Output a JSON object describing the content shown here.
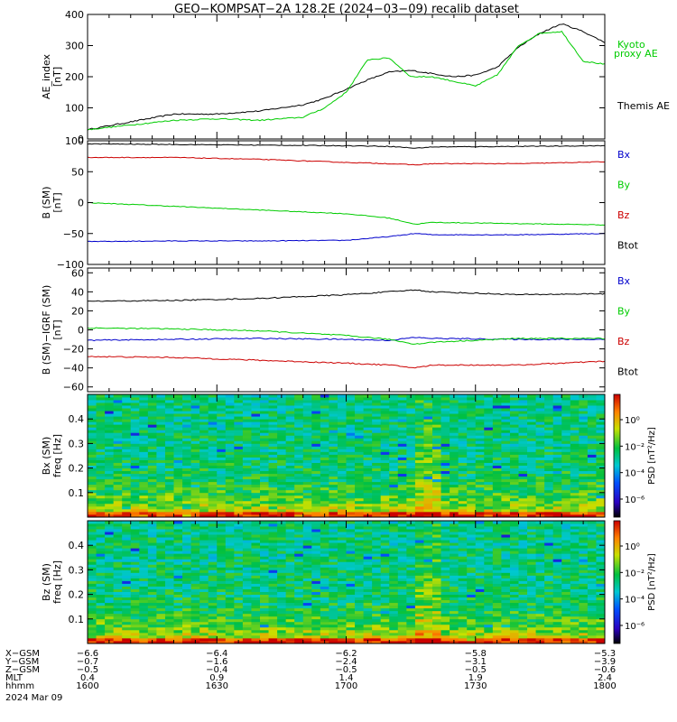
{
  "title": "GEO−KOMPSAT−2A 128.2E (2024−03−09) recalib dataset",
  "colors": {
    "black": "#000000",
    "red": "#cc0000",
    "green": "#00cc00",
    "blue": "#0000cc"
  },
  "orbit": {
    "rows": [
      {
        "label": "X−GSM",
        "values": [
          "−6.6",
          "−6.4",
          "−6.2",
          "−5.8",
          "−5.3"
        ]
      },
      {
        "label": "Y−GSM",
        "values": [
          "−0.7",
          "−1.6",
          "−2.4",
          "−3.1",
          "−3.9"
        ]
      },
      {
        "label": "Z−GSM",
        "values": [
          "−0.5",
          "−0.4",
          "−0.5",
          "−0.5",
          "−0.6"
        ]
      },
      {
        "label": "MLT",
        "values": [
          "0.4",
          "0.9",
          "1.4",
          "1.9",
          "2.4"
        ]
      },
      {
        "label": "hhmm",
        "values": [
          "1600",
          "1630",
          "1700",
          "1730",
          "1800"
        ]
      }
    ],
    "date": "2024 Mar 09"
  },
  "chart_data": [
    {
      "type": "line",
      "ylabel": [
        "AE_index",
        "[nT]"
      ],
      "ylim": [
        0,
        400
      ],
      "yticks": [
        "0",
        "100",
        "200",
        "300",
        "400"
      ],
      "x": [
        1600,
        1610,
        1620,
        1630,
        1640,
        1650,
        1655,
        1700,
        1705,
        1710,
        1715,
        1720,
        1725,
        1730,
        1735,
        1740,
        1745,
        1750,
        1755,
        1800
      ],
      "series": [
        {
          "name": "Themis AE",
          "color": "black",
          "values": [
            30,
            55,
            80,
            80,
            90,
            110,
            130,
            160,
            190,
            215,
            220,
            210,
            200,
            205,
            230,
            295,
            340,
            370,
            345,
            310
          ]
        },
        {
          "name": "Kyoto proxy AE",
          "color": "green",
          "values": [
            30,
            45,
            60,
            65,
            60,
            70,
            100,
            150,
            255,
            260,
            200,
            200,
            185,
            170,
            205,
            300,
            340,
            345,
            250,
            240
          ]
        }
      ],
      "legend": [
        {
          "text": "Kyoto",
          "color": "green"
        },
        {
          "text": "proxy AE",
          "color": "green"
        },
        {
          "text": "Themis AE",
          "color": "black"
        }
      ]
    },
    {
      "type": "line",
      "ylabel": [
        "B (SM)",
        "[nT]"
      ],
      "ylim": [
        -100,
        100
      ],
      "yticks": [
        "−100",
        "−50",
        "0",
        "50",
        "100"
      ],
      "x": [
        1600,
        1620,
        1640,
        1700,
        1710,
        1716,
        1720,
        1740,
        1800
      ],
      "series": [
        {
          "name": "Bx",
          "color": "blue",
          "values": [
            -63,
            -62,
            -62,
            -61,
            -55,
            -50,
            -52,
            -52,
            -50
          ]
        },
        {
          "name": "By",
          "color": "green",
          "values": [
            0,
            -6,
            -12,
            -18,
            -25,
            -35,
            -32,
            -34,
            -36
          ]
        },
        {
          "name": "Bz",
          "color": "red",
          "values": [
            73,
            73,
            70,
            65,
            63,
            61,
            63,
            63,
            66
          ]
        },
        {
          "name": "Btot",
          "color": "black",
          "values": [
            95,
            94,
            93,
            92,
            91,
            88,
            90,
            91,
            92
          ]
        }
      ],
      "legend": [
        {
          "text": "Bx",
          "color": "blue"
        },
        {
          "text": "By",
          "color": "green"
        },
        {
          "text": "Bz",
          "color": "red"
        },
        {
          "text": "Btot",
          "color": "black"
        }
      ]
    },
    {
      "type": "line",
      "ylabel": [
        "B (SM)−IGRF (SM)",
        "[nT]"
      ],
      "ylim": [
        -65,
        65
      ],
      "yticks": [
        "−60",
        "−40",
        "−20",
        "0",
        "20",
        "40",
        "60"
      ],
      "x": [
        1600,
        1620,
        1640,
        1700,
        1710,
        1716,
        1720,
        1740,
        1800
      ],
      "series": [
        {
          "name": "Bx",
          "color": "blue",
          "values": [
            -11,
            -10,
            -9,
            -10,
            -11,
            -8,
            -9,
            -10,
            -10
          ]
        },
        {
          "name": "By",
          "color": "green",
          "values": [
            2,
            1,
            -1,
            -6,
            -10,
            -15,
            -13,
            -9,
            -9
          ]
        },
        {
          "name": "Bz",
          "color": "red",
          "values": [
            -28,
            -29,
            -32,
            -35,
            -37,
            -40,
            -37,
            -37,
            -33
          ]
        },
        {
          "name": "Btot",
          "color": "black",
          "values": [
            30,
            31,
            33,
            37,
            40,
            42,
            40,
            37,
            38
          ]
        }
      ],
      "legend": [
        {
          "text": "Bx",
          "color": "blue"
        },
        {
          "text": "By",
          "color": "green"
        },
        {
          "text": "Bz",
          "color": "red"
        },
        {
          "text": "Btot",
          "color": "black"
        }
      ]
    },
    {
      "type": "heatmap",
      "ylabel": [
        "Bx (SM)",
        "freq [Hz]"
      ],
      "ylim": [
        0,
        0.5
      ],
      "yticks": [
        "0.1",
        "0.2",
        "0.3",
        "0.4"
      ],
      "colorbar": {
        "label": "PSD [nT²/Hz]",
        "ticks": [
          "10⁰",
          "10⁻²",
          "10⁻⁴",
          "10⁻⁶"
        ]
      }
    },
    {
      "type": "heatmap",
      "ylabel": [
        "Bz (SM)",
        "freq [Hz]"
      ],
      "ylim": [
        0,
        0.5
      ],
      "yticks": [
        "0.1",
        "0.2",
        "0.3",
        "0.4"
      ],
      "colorbar": {
        "label": "PSD [nT²/Hz]",
        "ticks": [
          "10⁰",
          "10⁻²",
          "10⁻⁴",
          "10⁻⁶"
        ]
      }
    }
  ]
}
